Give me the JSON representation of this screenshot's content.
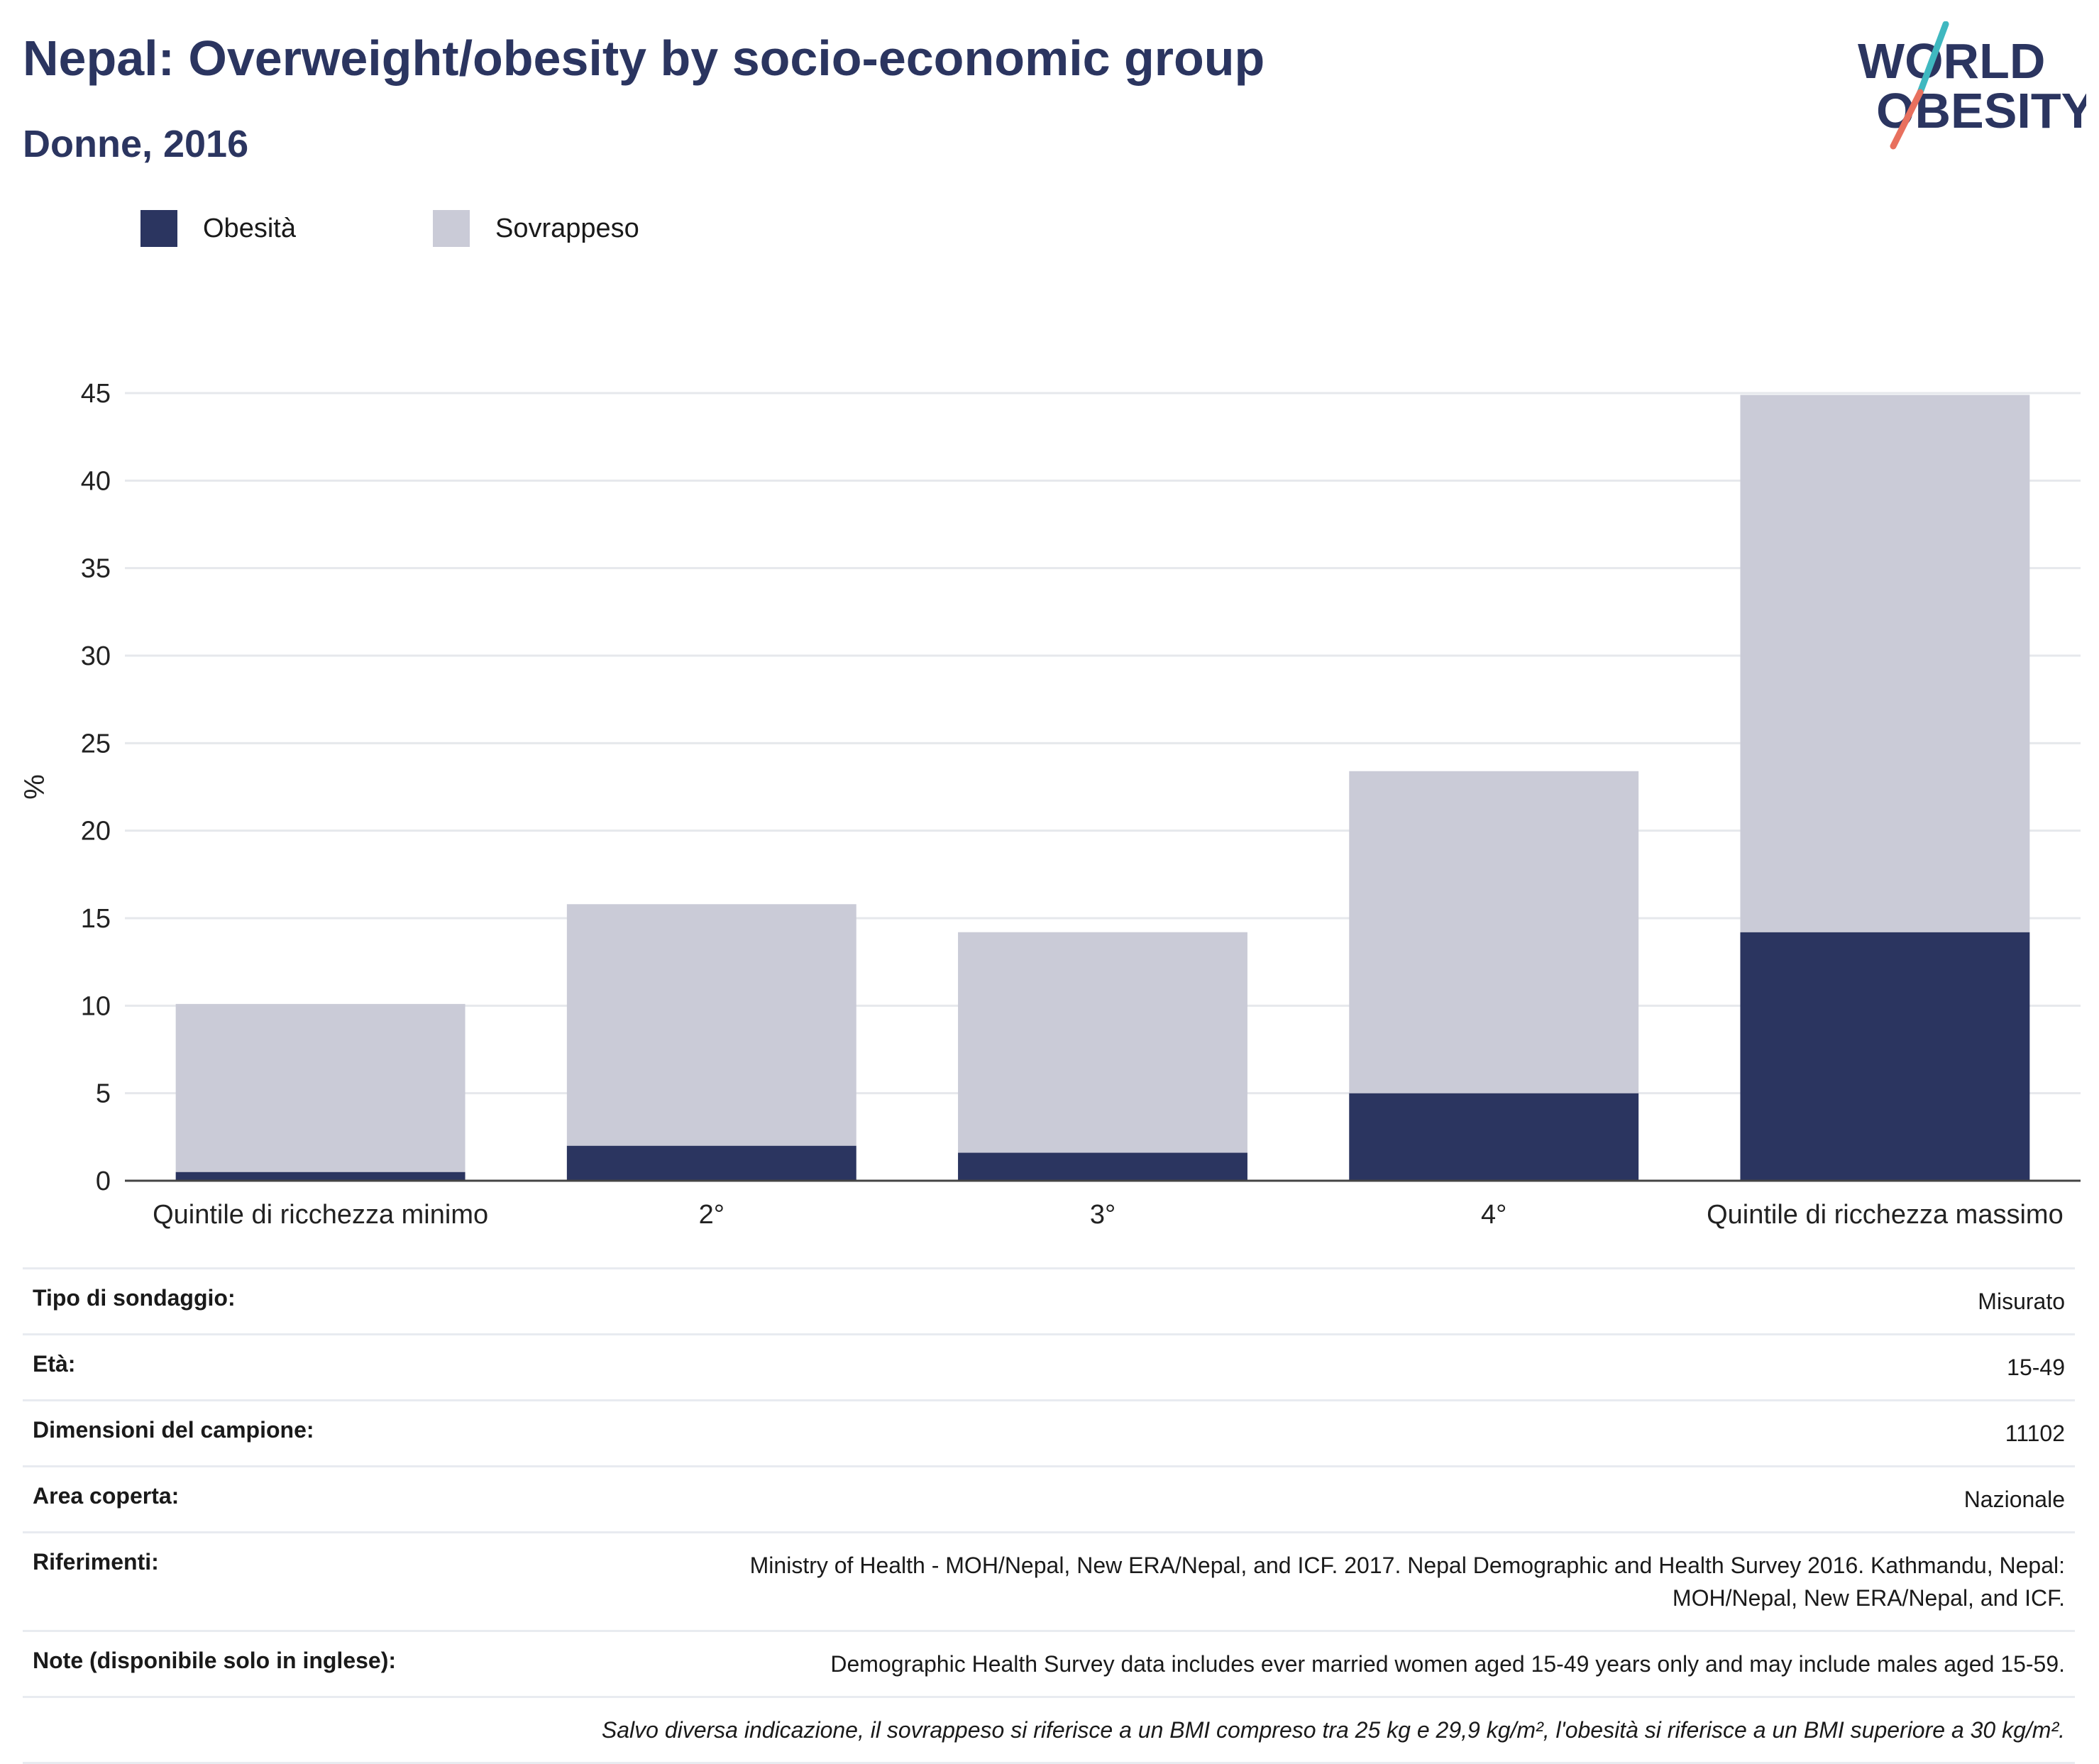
{
  "header": {
    "title": "Nepal: Overweight/obesity by socio-economic group",
    "subtitle": "Donne, 2016"
  },
  "logo": {
    "line1": "WORLD",
    "line2": "OBESITY",
    "accent_teal": "#3fb8c0",
    "accent_coral": "#e8705e"
  },
  "legend": {
    "items": [
      {
        "label": "Obesità",
        "color": "#2b3560"
      },
      {
        "label": "Sovrappeso",
        "color": "#cacbd7"
      }
    ]
  },
  "chart_data": {
    "type": "bar",
    "stacked": true,
    "categories": [
      "Quintile di ricchezza minimo",
      "2°",
      "3°",
      "4°",
      "Quintile di ricchezza massimo"
    ],
    "series": [
      {
        "name": "Obesità",
        "color": "#2b3560",
        "values": [
          0.5,
          2.0,
          1.6,
          5.0,
          14.2
        ]
      },
      {
        "name": "Sovrappeso",
        "color": "#cacbd7",
        "values": [
          9.6,
          13.8,
          12.6,
          18.4,
          30.7
        ]
      }
    ],
    "ylabel": "%",
    "ylim": [
      0,
      45
    ],
    "yticks": [
      0,
      5,
      10,
      15,
      20,
      25,
      30,
      35,
      40,
      45
    ],
    "grid": true,
    "legend_position": "top-left"
  },
  "info": {
    "rows": [
      {
        "label": "Tipo di sondaggio:",
        "value": "Misurato"
      },
      {
        "label": "Età:",
        "value": "15-49"
      },
      {
        "label": "Dimensioni del campione:",
        "value": "11102"
      },
      {
        "label": "Area coperta:",
        "value": "Nazionale"
      },
      {
        "label": "Riferimenti:",
        "value_lines": [
          "Ministry of Health - MOH/Nepal, New ERA/Nepal, and ICF. 2017. Nepal Demographic and Health Survey 2016. Kathmandu, Nepal:",
          "MOH/Nepal, New ERA/Nepal, and ICF."
        ]
      },
      {
        "label": "Note (disponibile solo in inglese):",
        "value": "Demographic Health Survey data includes ever married women aged 15-49 years only and may include males aged 15-59."
      }
    ],
    "footnote": "Salvo diversa indicazione, il sovrappeso si riferisce a un BMI compreso tra 25 kg e 29,9 kg/m², l'obesità si riferisce a un BMI superiore a 30 kg/m²."
  }
}
